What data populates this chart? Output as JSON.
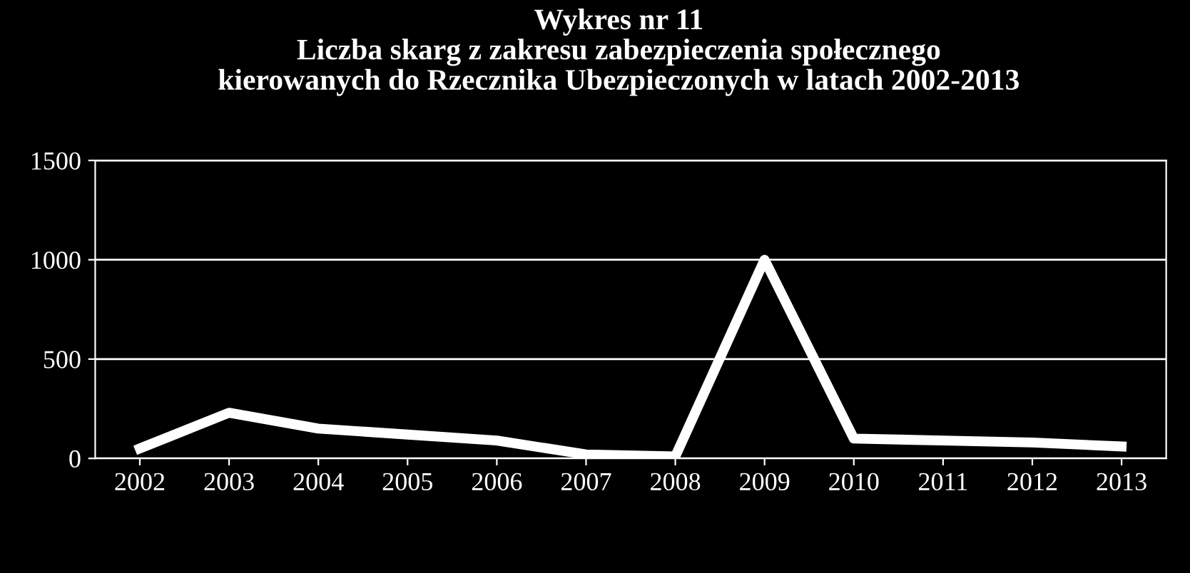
{
  "chart_data": {
    "type": "line",
    "title": "Wykres nr 11\nLiczba skarg z zakresu zabezpieczenia społecznego\nkierowanych do Rzecznika Ubezpieczonych w latach 2002-2013",
    "categories": [
      "2002",
      "2003",
      "2004",
      "2005",
      "2006",
      "2007",
      "2008",
      "2009",
      "2010",
      "2011",
      "2012",
      "2013"
    ],
    "series": [
      {
        "color": "#ffffff",
        "values": [
          50,
          230,
          150,
          120,
          90,
          20,
          10,
          1000,
          100,
          90,
          80,
          60
        ]
      }
    ],
    "ylim": [
      0,
      1500
    ],
    "yticks": [
      0,
      500,
      1000,
      1500
    ],
    "grid": "y",
    "legend": false,
    "marker": "none",
    "line_style": "solid"
  }
}
